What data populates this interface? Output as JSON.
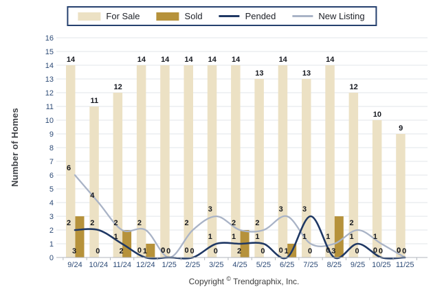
{
  "chart_data": {
    "type": "bar+line combo",
    "categories": [
      "9/24",
      "10/24",
      "11/24",
      "12/24",
      "1/25",
      "2/25",
      "3/25",
      "4/25",
      "5/25",
      "6/25",
      "7/25",
      "8/25",
      "9/25",
      "10/25",
      "11/25"
    ],
    "series": [
      {
        "name": "For Sale",
        "type": "bar",
        "color": "#ECE1C4",
        "values": [
          14,
          11,
          12,
          14,
          14,
          14,
          14,
          14,
          13,
          14,
          13,
          14,
          12,
          10,
          9
        ]
      },
      {
        "name": "Sold",
        "type": "bar",
        "color": "#B6923B",
        "values": [
          3,
          0,
          2,
          1,
          0,
          0,
          0,
          2,
          0,
          1,
          0,
          3,
          0,
          0,
          0
        ]
      },
      {
        "name": "Pended",
        "type": "line",
        "color": "#1F3864",
        "values": [
          2,
          2,
          1,
          0,
          0,
          0,
          1,
          1,
          1,
          0,
          3,
          0,
          1,
          0,
          0
        ]
      },
      {
        "name": "New Listing",
        "type": "line",
        "color": "#A9B3C6",
        "values": [
          6,
          4,
          2,
          2,
          0,
          2,
          3,
          2,
          2,
          3,
          1,
          1,
          2,
          1,
          0
        ]
      }
    ],
    "title": "",
    "xlabel": "",
    "ylabel": "Number of Homes",
    "ylim": [
      0,
      16
    ],
    "ytick_step": 1,
    "grid": true,
    "legend_position": "top-center",
    "data_labels_shown": true,
    "colors": {
      "gridline": "#E2E6EA",
      "axis_line": "#B0B6BD",
      "tick_text": "#2C4A76",
      "data_label_text": "#15181F",
      "legend_border": "#25406E"
    }
  },
  "footer": {
    "word": "Copyright",
    "symbol": "©",
    "rest": " Trendgraphix, Inc."
  }
}
